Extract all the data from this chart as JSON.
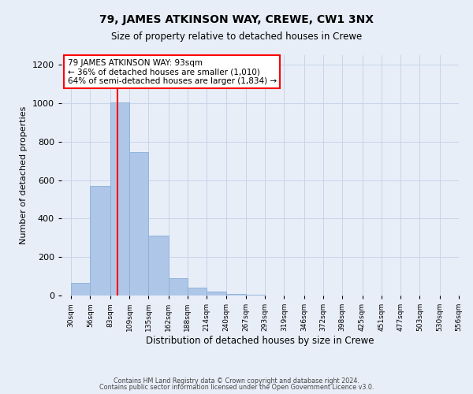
{
  "title": "79, JAMES ATKINSON WAY, CREWE, CW1 3NX",
  "subtitle": "Size of property relative to detached houses in Crewe",
  "xlabel": "Distribution of detached houses by size in Crewe",
  "ylabel": "Number of detached properties",
  "bar_values": [
    65,
    570,
    1005,
    745,
    310,
    90,
    40,
    20,
    10,
    5
  ],
  "bin_edges": [
    30,
    56,
    83,
    109,
    135,
    162,
    188,
    214,
    240,
    267,
    293
  ],
  "all_xtick_labels": [
    "30sqm",
    "56sqm",
    "83sqm",
    "109sqm",
    "135sqm",
    "162sqm",
    "188sqm",
    "214sqm",
    "240sqm",
    "267sqm",
    "293sqm",
    "319sqm",
    "346sqm",
    "372sqm",
    "398sqm",
    "425sqm",
    "451sqm",
    "477sqm",
    "503sqm",
    "530sqm",
    "556sqm"
  ],
  "all_xtick_positions": [
    30,
    56,
    83,
    109,
    135,
    162,
    188,
    214,
    240,
    267,
    293,
    319,
    346,
    372,
    398,
    425,
    451,
    477,
    503,
    530,
    556
  ],
  "bar_color": "#aec6e8",
  "bar_edgecolor": "#8ab0d8",
  "grid_color": "#c8d4e8",
  "background_color": "#e8eef8",
  "red_line_x": 93,
  "annotation_title": "79 JAMES ATKINSON WAY: 93sqm",
  "annotation_line1": "← 36% of detached houses are smaller (1,010)",
  "annotation_line2": "64% of semi-detached houses are larger (1,834) →",
  "ylim": [
    0,
    1250
  ],
  "xlim": [
    17,
    556
  ],
  "yticks": [
    0,
    200,
    400,
    600,
    800,
    1000,
    1200
  ],
  "footer1": "Contains HM Land Registry data © Crown copyright and database right 2024.",
  "footer2": "Contains public sector information licensed under the Open Government Licence v3.0."
}
